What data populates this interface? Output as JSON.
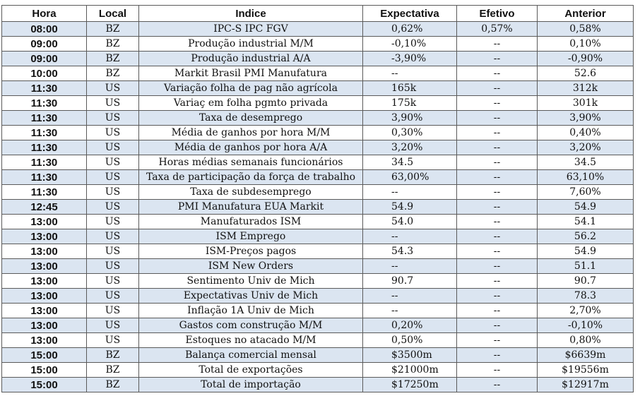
{
  "headers": {
    "hora": "Hora",
    "local": "Local",
    "indice": "Indice",
    "expectativa": "Expectativa",
    "efetivo": "Efetivo",
    "anterior": "Anterior"
  },
  "rows": [
    {
      "hora": "08:00",
      "local": "BZ",
      "indice": "IPC-S IPC FGV",
      "expectativa": "0,62%",
      "efetivo": "0,57%",
      "anterior": "0,58%"
    },
    {
      "hora": "09:00",
      "local": "BZ",
      "indice": "Produção industrial M/M",
      "expectativa": "-0,10%",
      "efetivo": "--",
      "anterior": "0,10%"
    },
    {
      "hora": "09:00",
      "local": "BZ",
      "indice": "Produção industrial A/A",
      "expectativa": "-3,90%",
      "efetivo": "--",
      "anterior": "-0,90%"
    },
    {
      "hora": "10:00",
      "local": "BZ",
      "indice": "Markit Brasil PMI Manufatura",
      "expectativa": "--",
      "efetivo": "--",
      "anterior": "52.6"
    },
    {
      "hora": "11:30",
      "local": "US",
      "indice": "Variação folha de pag não agrícola",
      "expectativa": "165k",
      "efetivo": "--",
      "anterior": "312k"
    },
    {
      "hora": "11:30",
      "local": "US",
      "indice": "Variaç em folha pgmto privada",
      "expectativa": "175k",
      "efetivo": "--",
      "anterior": "301k"
    },
    {
      "hora": "11:30",
      "local": "US",
      "indice": "Taxa de desemprego",
      "expectativa": "3,90%",
      "efetivo": "--",
      "anterior": "3,90%"
    },
    {
      "hora": "11:30",
      "local": "US",
      "indice": "Média de ganhos por hora M/M",
      "expectativa": "0,30%",
      "efetivo": "--",
      "anterior": "0,40%"
    },
    {
      "hora": "11:30",
      "local": "US",
      "indice": "Média de ganhos por hora A/A",
      "expectativa": "3,20%",
      "efetivo": "--",
      "anterior": "3,20%"
    },
    {
      "hora": "11:30",
      "local": "US",
      "indice": "Horas médias semanais funcionários",
      "expectativa": "34.5",
      "efetivo": "--",
      "anterior": "34.5"
    },
    {
      "hora": "11:30",
      "local": "US",
      "indice": "Taxa de participação da força de trabalho",
      "expectativa": "63,00%",
      "efetivo": "--",
      "anterior": "63,10%"
    },
    {
      "hora": "11:30",
      "local": "US",
      "indice": "Taxa de subdesemprego",
      "expectativa": "--",
      "efetivo": "--",
      "anterior": "7,60%"
    },
    {
      "hora": "12:45",
      "local": "US",
      "indice": "PMI Manufatura EUA Markit",
      "expectativa": "54.9",
      "efetivo": "--",
      "anterior": "54.9"
    },
    {
      "hora": "13:00",
      "local": "US",
      "indice": "Manufaturados ISM",
      "expectativa": "54.0",
      "efetivo": "--",
      "anterior": "54.1"
    },
    {
      "hora": "13:00",
      "local": "US",
      "indice": "ISM Emprego",
      "expectativa": "--",
      "efetivo": "--",
      "anterior": "56.2"
    },
    {
      "hora": "13:00",
      "local": "US",
      "indice": "ISM-Preços pagos",
      "expectativa": "54.3",
      "efetivo": "--",
      "anterior": "54.9"
    },
    {
      "hora": "13:00",
      "local": "US",
      "indice": "ISM New Orders",
      "expectativa": "--",
      "efetivo": "--",
      "anterior": "51.1"
    },
    {
      "hora": "13:00",
      "local": "US",
      "indice": "Sentimento Univ de Mich",
      "expectativa": "90.7",
      "efetivo": "--",
      "anterior": "90.7"
    },
    {
      "hora": "13:00",
      "local": "US",
      "indice": "Expectativas Univ de Mich",
      "expectativa": "--",
      "efetivo": "--",
      "anterior": "78.3"
    },
    {
      "hora": "13:00",
      "local": "US",
      "indice": "Inflação 1A Univ de Mich",
      "expectativa": "--",
      "efetivo": "--",
      "anterior": "2,70%"
    },
    {
      "hora": "13:00",
      "local": "US",
      "indice": "Gastos com construção M/M",
      "expectativa": "0,20%",
      "efetivo": "--",
      "anterior": "-0,10%"
    },
    {
      "hora": "13:00",
      "local": "US",
      "indice": "Estoques no atacado M/M",
      "expectativa": "0,50%",
      "efetivo": "--",
      "anterior": "0,80%"
    },
    {
      "hora": "15:00",
      "local": "BZ",
      "indice": "Balança comercial mensal",
      "expectativa": "$3500m",
      "efetivo": "--",
      "anterior": "$6639m"
    },
    {
      "hora": "15:00",
      "local": "BZ",
      "indice": "Total de exportações",
      "expectativa": "$21000m",
      "efetivo": "--",
      "anterior": "$19556m"
    },
    {
      "hora": "15:00",
      "local": "BZ",
      "indice": "Total de importação",
      "expectativa": "$17250m",
      "efetivo": "--",
      "anterior": "$12917m"
    }
  ]
}
